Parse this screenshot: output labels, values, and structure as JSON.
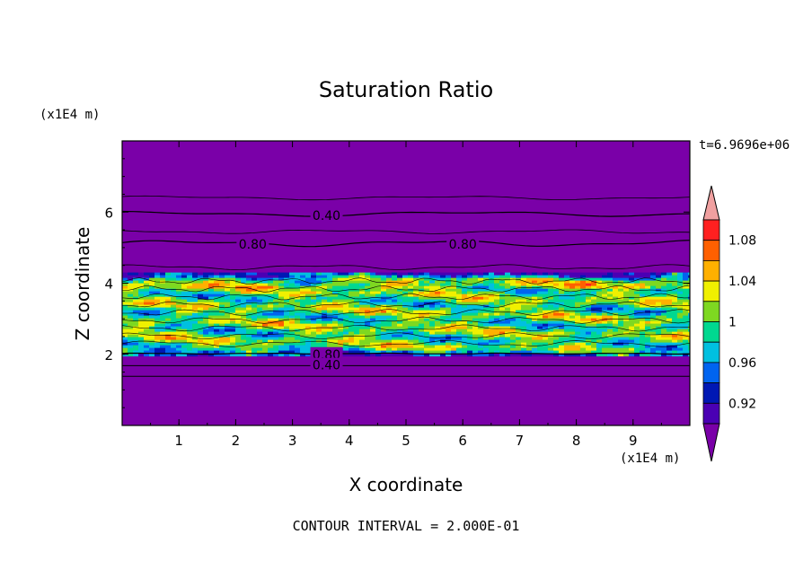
{
  "chart_data": {
    "type": "heatmap",
    "title": "Saturation Ratio",
    "xlabel": "X coordinate",
    "ylabel": "Z coordinate",
    "x_unit": "(x1E4 m)",
    "y_unit": "(x1E4 m)",
    "time_label": "t=6.9696e+06",
    "footer": "CONTOUR INTERVAL = 2.000E-01",
    "xlim": [
      0,
      10
    ],
    "ylim": [
      0,
      8
    ],
    "x_ticks": [
      "1",
      "2",
      "3",
      "4",
      "5",
      "6",
      "7",
      "8",
      "9"
    ],
    "y_ticks": [
      "2",
      "4",
      "6"
    ],
    "colorbar": {
      "tick_labels": [
        "0.92",
        "0.96",
        "1",
        "1.04",
        "1.08"
      ],
      "levels": [
        0.9,
        0.92,
        0.94,
        0.96,
        0.98,
        1.0,
        1.02,
        1.04,
        1.06,
        1.08,
        1.1
      ],
      "extend": "both",
      "colors": [
        "#7a00a8",
        "#4a00b4",
        "#0018b4",
        "#0064f0",
        "#00c0e0",
        "#00d890",
        "#7ed821",
        "#f0f000",
        "#ffb000",
        "#ff6000",
        "#ff2020",
        "#f0a0a0"
      ]
    },
    "background_value_color": "#7a00a8",
    "moist_layer_z": [
      2.0,
      4.3
    ],
    "contour_labels": [
      {
        "text": "0.40",
        "x": 3.6,
        "z": 5.9
      },
      {
        "text": "0.80",
        "x": 2.3,
        "z": 5.1
      },
      {
        "text": "0.80",
        "x": 6.0,
        "z": 5.1
      },
      {
        "text": "0.80",
        "x": 3.6,
        "z": 2.0
      },
      {
        "text": "0.40",
        "x": 3.6,
        "z": 1.7
      }
    ]
  }
}
